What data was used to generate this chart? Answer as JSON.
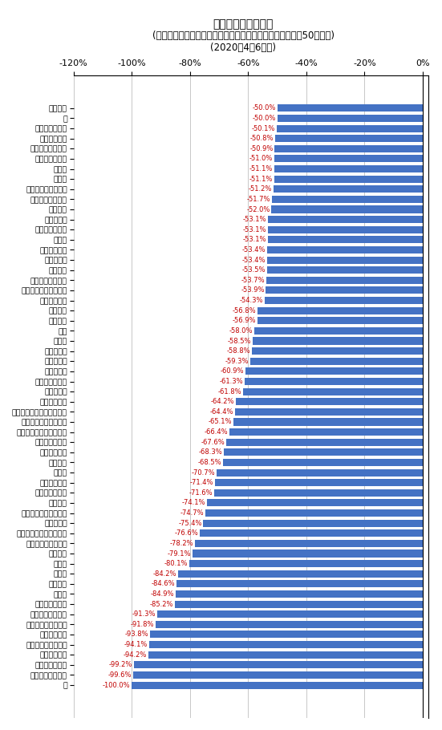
{
  "title_line1": "月あたりの支出金額",
  "title_line2": "(二人以上世帯、品目分類、小区分、前年同期比でマイナス50％以下)",
  "title_line3": "(2020年4〜6月期)",
  "categories": [
    "一般外食",
    "梨",
    "婦人用セーター",
    "他の麺類外食",
    "外壁・塀等工事費",
    "他の主食的外食",
    "男子靴",
    "婦人靴",
    "マフラー・スカーフ",
    "日本そば・うどん",
    "ブラウス",
    "ゴルフ用具",
    "鉄道通学定期代",
    "喫茶代",
    "スポーツ月謝",
    "男子用上着",
    "スカート",
    "温泉・銭湯入浴料",
    "写真撮影・プリント代",
    "大人用運動靴",
    "ネクタイ",
    "音楽月謝",
    "洋食",
    "背広服",
    "被服賃借料",
    "有料道路料",
    "タクシー代",
    "他の駐車場借料",
    "婦人用上着",
    "婦人用コート",
    "身の回り用品関連サービス",
    "入場・観覧・ゲーム代",
    "他のスポーツ施設使用料",
    "他の教養的月謝",
    "男子用コート",
    "家事月謝",
    "バス代",
    "幼児教育費用",
    "バス通学定期代",
    "航空運賃",
    "カメラ・ビデオカメラ",
    "婚礼関係費",
    "ストーブ・温風ヒーター",
    "他の入場・ゲーム代",
    "鉄道運賃",
    "飲酒代",
    "宿泊料",
    "他の交通",
    "畳替え",
    "文化施設入場料",
    "国内パック旅行費",
    "遊園地入場・乗物代",
    "旅行用かばん",
    "映画・演劇等入場料",
    "パック旅行費",
    "スポーツ観覧料",
    "外国パック旅行費",
    "柿"
  ],
  "values": [
    -50.0,
    -50.0,
    -50.1,
    -50.8,
    -50.9,
    -51.0,
    -51.1,
    -51.1,
    -51.2,
    -51.7,
    -52.0,
    -53.1,
    -53.1,
    -53.1,
    -53.4,
    -53.4,
    -53.5,
    -53.7,
    -53.9,
    -54.3,
    -56.8,
    -56.9,
    -58.0,
    -58.5,
    -58.8,
    -59.3,
    -60.9,
    -61.3,
    -61.8,
    -64.2,
    -64.4,
    -65.1,
    -66.4,
    -67.6,
    -68.3,
    -68.5,
    -70.7,
    -71.4,
    -71.6,
    -74.1,
    -74.7,
    -75.4,
    -76.6,
    -78.2,
    -79.1,
    -80.1,
    -84.2,
    -84.6,
    -84.9,
    -85.2,
    -91.3,
    -91.8,
    -93.8,
    -94.1,
    -94.2,
    -99.2,
    -99.6,
    -100.0
  ],
  "bar_color": "#4472C4",
  "label_color": "#C00000",
  "xlim": [
    -120,
    2
  ],
  "xticks": [
    -120,
    -100,
    -80,
    -60,
    -40,
    -20,
    0
  ],
  "xtick_labels": [
    "-120%",
    "-100%",
    "-80%",
    "-60%",
    "-40%",
    "-20%",
    "0%"
  ],
  "background_color": "#FFFFFF",
  "bar_height": 0.72,
  "ylabel_fontsize": 6.8,
  "value_label_fontsize": 6.0,
  "title_fontsize": 10,
  "subtitle_fontsize": 8.5
}
